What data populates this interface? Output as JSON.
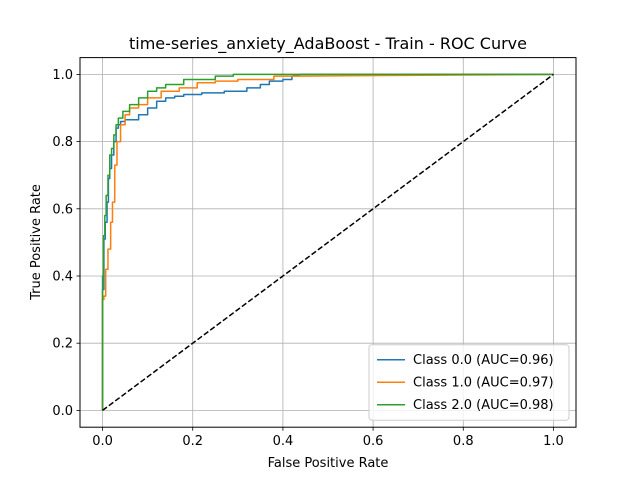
{
  "chart_data": {
    "type": "line",
    "title": "time-series_anxiety_AdaBoost - Train - ROC Curve",
    "xlabel": "False Positive Rate",
    "ylabel": "True Positive Rate",
    "xlim": [
      -0.05,
      1.05
    ],
    "ylim": [
      -0.05,
      1.05
    ],
    "xticks": [
      "0.0",
      "0.2",
      "0.4",
      "0.6",
      "0.8",
      "1.0"
    ],
    "yticks": [
      "0.0",
      "0.2",
      "0.4",
      "0.6",
      "0.8",
      "1.0"
    ],
    "grid": true,
    "legend_position": "lower right",
    "series": [
      {
        "name": "Class 0.0 (AUC=0.96)",
        "color": "#1f77b4",
        "x": [
          0.0,
          0.0,
          0.003,
          0.003,
          0.006,
          0.006,
          0.01,
          0.01,
          0.013,
          0.013,
          0.016,
          0.016,
          0.02,
          0.02,
          0.025,
          0.025,
          0.03,
          0.03,
          0.035,
          0.035,
          0.04,
          0.04,
          0.05,
          0.05,
          0.08,
          0.08,
          0.1,
          0.1,
          0.12,
          0.12,
          0.14,
          0.14,
          0.16,
          0.16,
          0.18,
          0.18,
          0.22,
          0.22,
          0.27,
          0.27,
          0.32,
          0.32,
          0.35,
          0.35,
          0.37,
          0.37,
          0.4,
          0.4,
          0.42,
          0.42,
          0.44,
          1.0
        ],
        "y": [
          0.0,
          0.36,
          0.36,
          0.51,
          0.51,
          0.56,
          0.56,
          0.62,
          0.62,
          0.69,
          0.69,
          0.72,
          0.72,
          0.76,
          0.76,
          0.8,
          0.8,
          0.84,
          0.84,
          0.85,
          0.85,
          0.86,
          0.86,
          0.865,
          0.865,
          0.88,
          0.88,
          0.9,
          0.9,
          0.92,
          0.92,
          0.93,
          0.93,
          0.935,
          0.935,
          0.94,
          0.94,
          0.945,
          0.945,
          0.95,
          0.95,
          0.96,
          0.96,
          0.97,
          0.97,
          0.98,
          0.98,
          0.985,
          0.985,
          0.995,
          1.0,
          1.0
        ]
      },
      {
        "name": "Class 1.0 (AUC=0.97)",
        "color": "#ff7f0e",
        "x": [
          0.0,
          0.0,
          0.003,
          0.003,
          0.007,
          0.007,
          0.012,
          0.012,
          0.018,
          0.018,
          0.022,
          0.022,
          0.027,
          0.027,
          0.032,
          0.032,
          0.04,
          0.04,
          0.05,
          0.05,
          0.06,
          0.06,
          0.08,
          0.08,
          0.1,
          0.1,
          0.13,
          0.13,
          0.17,
          0.17,
          0.21,
          0.21,
          0.25,
          0.25,
          0.3,
          0.3,
          0.38,
          0.38,
          0.44,
          1.0
        ],
        "y": [
          0.0,
          0.33,
          0.33,
          0.34,
          0.34,
          0.42,
          0.42,
          0.48,
          0.48,
          0.56,
          0.56,
          0.62,
          0.62,
          0.73,
          0.73,
          0.8,
          0.8,
          0.85,
          0.85,
          0.88,
          0.88,
          0.9,
          0.9,
          0.91,
          0.91,
          0.93,
          0.93,
          0.95,
          0.95,
          0.96,
          0.96,
          0.975,
          0.975,
          0.98,
          0.98,
          0.985,
          0.985,
          0.995,
          0.995,
          1.0
        ]
      },
      {
        "name": "Class 2.0 (AUC=0.98)",
        "color": "#2ca02c",
        "x": [
          0.0,
          0.0,
          0.002,
          0.002,
          0.005,
          0.005,
          0.008,
          0.008,
          0.012,
          0.012,
          0.016,
          0.016,
          0.02,
          0.02,
          0.025,
          0.025,
          0.03,
          0.03,
          0.035,
          0.035,
          0.045,
          0.045,
          0.06,
          0.06,
          0.08,
          0.08,
          0.1,
          0.1,
          0.12,
          0.12,
          0.14,
          0.14,
          0.18,
          0.18,
          0.25,
          0.25,
          0.29,
          0.29,
          1.0
        ],
        "y": [
          0.0,
          0.4,
          0.4,
          0.52,
          0.52,
          0.58,
          0.58,
          0.64,
          0.64,
          0.7,
          0.7,
          0.76,
          0.76,
          0.78,
          0.78,
          0.82,
          0.82,
          0.85,
          0.85,
          0.87,
          0.87,
          0.89,
          0.89,
          0.91,
          0.91,
          0.93,
          0.93,
          0.95,
          0.95,
          0.96,
          0.96,
          0.97,
          0.97,
          0.985,
          0.985,
          0.995,
          0.995,
          1.0,
          1.0
        ]
      },
      {
        "name": "",
        "color": "#000000",
        "dashed": true,
        "x": [
          0.0,
          1.0
        ],
        "y": [
          0.0,
          1.0
        ]
      }
    ]
  }
}
